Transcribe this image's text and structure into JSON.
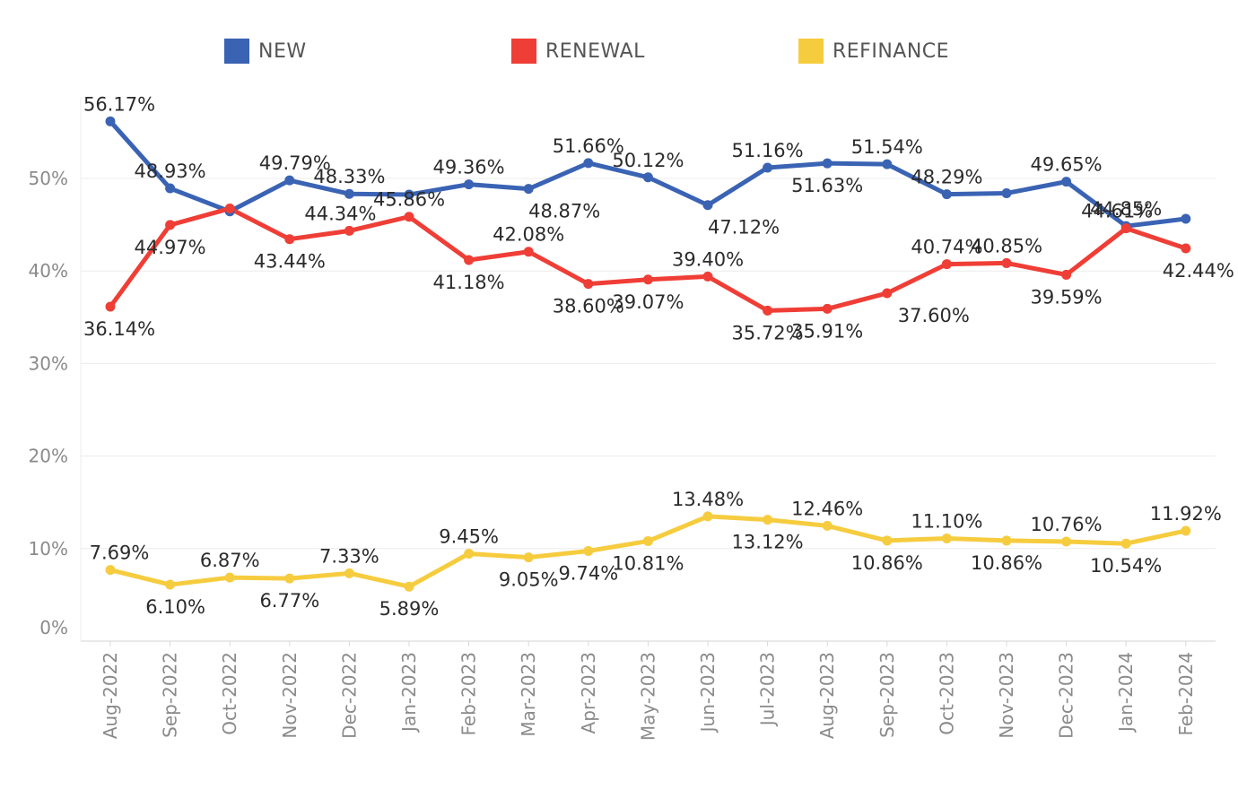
{
  "chart_data": {
    "type": "line",
    "categories": [
      "Aug-2022",
      "Sep-2022",
      "Oct-2022",
      "Nov-2022",
      "Dec-2022",
      "Jan-2023",
      "Feb-2023",
      "Mar-2023",
      "Apr-2023",
      "May-2023",
      "Jun-2023",
      "Jul-2023",
      "Aug-2023",
      "Sep-2023",
      "Oct-2023",
      "Nov-2023",
      "Dec-2023",
      "Jan-2024",
      "Feb-2024"
    ],
    "series": [
      {
        "name": "NEW",
        "color": "#3a63b4",
        "values": [
          56.17,
          48.93,
          46.44,
          49.79,
          48.33,
          48.25,
          49.36,
          48.87,
          51.66,
          50.12,
          47.12,
          51.16,
          51.63,
          51.54,
          48.29,
          48.4,
          49.65,
          44.85,
          45.64
        ],
        "labels": [
          "56.17%",
          "48.93%",
          "",
          "49.79%",
          "48.33%",
          "",
          "49.36%",
          "48.87%",
          "51.66%",
          "50.12%",
          "47.12%",
          "51.16%",
          "51.63%",
          "51.54%",
          "48.29%",
          "",
          "49.65%",
          "44.85%",
          ""
        ]
      },
      {
        "name": "RENEWAL",
        "color": "#ef3e36",
        "values": [
          36.14,
          44.97,
          46.75,
          43.44,
          44.34,
          45.86,
          41.18,
          42.08,
          38.6,
          39.07,
          39.4,
          35.72,
          35.91,
          37.6,
          40.74,
          40.85,
          39.59,
          44.61,
          42.44
        ],
        "labels": [
          "36.14%",
          "44.97%",
          "",
          "43.44%",
          "44.34%",
          "45.86%",
          "41.18%",
          "42.08%",
          "38.60%",
          "39.07%",
          "39.40%",
          "35.72%",
          "35.91%",
          "37.60%",
          "40.74%",
          "40.85%",
          "39.59%",
          "44.61%",
          "42.44%"
        ]
      },
      {
        "name": "REFINANCE",
        "color": "#f6cc3f",
        "values": [
          7.69,
          6.1,
          6.87,
          6.77,
          7.33,
          5.89,
          9.45,
          9.05,
          9.74,
          10.81,
          13.48,
          13.12,
          12.46,
          10.86,
          11.1,
          10.86,
          10.76,
          10.54,
          11.92
        ],
        "labels": [
          "7.69%",
          "6.10%",
          "6.87%",
          "6.77%",
          "7.33%",
          "5.89%",
          "9.45%",
          "9.05%",
          "9.74%",
          "10.81%",
          "13.48%",
          "13.12%",
          "12.46%",
          "10.86%",
          "11.10%",
          "10.86%",
          "10.76%",
          "10.54%",
          "11.92%"
        ]
      }
    ],
    "ylim": [
      0,
      60
    ],
    "yticks": [
      0,
      10,
      20,
      30,
      40,
      50
    ],
    "ytick_labels": [
      "0%",
      "10%",
      "20%",
      "30%",
      "40%",
      "50%"
    ],
    "grid": true,
    "legend_position": "top",
    "title": "",
    "xlabel": "",
    "ylabel": ""
  }
}
